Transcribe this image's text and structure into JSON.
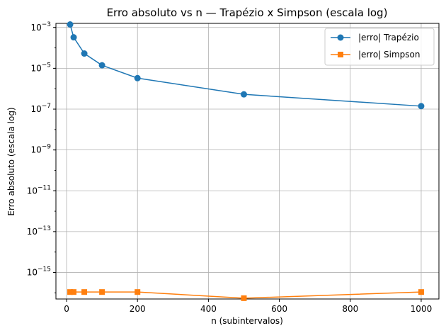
{
  "chart_data": {
    "type": "line",
    "title": "Erro absoluto vs n — Trapézio x Simpson (escala log)",
    "xlabel": "n (subintervalos)",
    "ylabel": "Erro absoluto (escala log)",
    "xlim": [
      -30,
      1050
    ],
    "ylim_log10": [
      -16.3,
      -2.8
    ],
    "y_scale": "log",
    "grid": true,
    "legend_position": "top-right",
    "x_ticks": [
      0,
      200,
      400,
      600,
      800,
      1000
    ],
    "x_tick_labels": [
      "0",
      "200",
      "400",
      "600",
      "800",
      "1000"
    ],
    "y_tick_exponents": [
      -3,
      -5,
      -7,
      -9,
      -11,
      -13,
      -15
    ],
    "y_tick_base": "10",
    "series": [
      {
        "name": "|erro| Trapézio",
        "color": "#1f77b4",
        "marker": "circle",
        "x": [
          10,
          20,
          50,
          100,
          200,
          500,
          1000
        ],
        "y": [
          0.0014,
          0.00033,
          5.3e-05,
          1.4e-05,
          3.3e-06,
          5.3e-07,
          1.4e-07
        ]
      },
      {
        "name": "|erro| Simpson",
        "color": "#ff7f0e",
        "marker": "square",
        "x": [
          10,
          20,
          50,
          100,
          200,
          500,
          1000
        ],
        "y": [
          1.1e-16,
          1.1e-16,
          1.1e-16,
          1.1e-16,
          1.1e-16,
          5.5e-17,
          1.1e-16
        ]
      }
    ]
  }
}
